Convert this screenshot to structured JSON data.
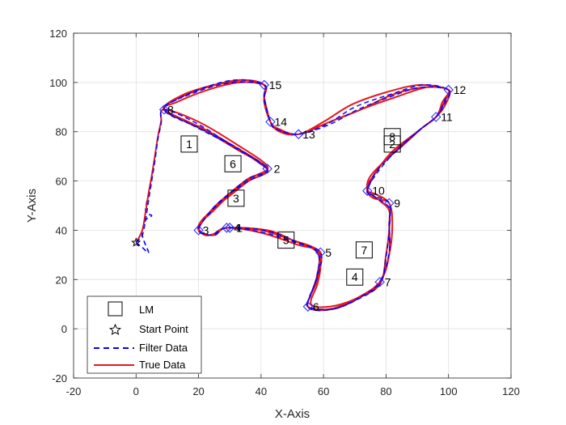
{
  "chart_data": {
    "type": "line",
    "xlabel": "X-Axis",
    "ylabel": "Y-Axis",
    "xlim": [
      -20,
      120
    ],
    "ylim": [
      -20,
      120
    ],
    "xticks": [
      -20,
      0,
      20,
      40,
      60,
      80,
      100,
      120
    ],
    "yticks": [
      -20,
      0,
      20,
      40,
      60,
      80,
      100,
      120
    ],
    "grid": true,
    "legend_position": "bottom-left",
    "legend": [
      {
        "key": "lm",
        "label": "LM"
      },
      {
        "key": "start",
        "label": "Start Point"
      },
      {
        "key": "filter",
        "label": "Filter Data"
      },
      {
        "key": "true",
        "label": "True Data"
      }
    ],
    "colors": {
      "filter": "#0000ff",
      "true": "#e41a1c",
      "waypoint": "#1f1fff",
      "grid": "#dcdcdc",
      "axis": "#262626"
    },
    "start_point": {
      "x": 0,
      "y": 35
    },
    "landmarks": [
      {
        "label": "1",
        "x": 17,
        "y": 75
      },
      {
        "label": "2",
        "x": 82,
        "y": 75
      },
      {
        "label": "3",
        "x": 32,
        "y": 53
      },
      {
        "label": "4",
        "x": 70,
        "y": 21
      },
      {
        "label": "5",
        "x": 48,
        "y": 36
      },
      {
        "label": "6",
        "x": 31,
        "y": 67
      },
      {
        "label": "7",
        "x": 73,
        "y": 32
      },
      {
        "label": "8",
        "x": 82,
        "y": 78
      }
    ],
    "waypoints": [
      {
        "label": "1",
        "x": 30,
        "y": 41,
        "dx": 4,
        "dy": 0
      },
      {
        "label": "2",
        "x": 42,
        "y": 65,
        "dx": 4,
        "dy": 0
      },
      {
        "label": "3",
        "x": 20,
        "y": 40,
        "dx": 1,
        "dy": 0
      },
      {
        "label": "4",
        "x": 29,
        "y": 41,
        "dx": 5,
        "dy": 0
      },
      {
        "label": "5",
        "x": 59,
        "y": 31,
        "dx": 2,
        "dy": 0
      },
      {
        "label": "6",
        "x": 55,
        "y": 9,
        "dx": 2,
        "dy": 0
      },
      {
        "label": "7",
        "x": 78,
        "y": 19,
        "dx": 2,
        "dy": 0
      },
      {
        "label": "8",
        "x": 9,
        "y": 89,
        "dx": 0,
        "dy": 0
      },
      {
        "label": "9",
        "x": 81,
        "y": 51,
        "dx": 2,
        "dy": 0
      },
      {
        "label": "10",
        "x": 74,
        "y": 56,
        "dx": 2,
        "dy": 0
      },
      {
        "label": "11",
        "x": 96,
        "y": 86,
        "dx": 2,
        "dy": 0
      },
      {
        "label": "12",
        "x": 100,
        "y": 97,
        "dx": 2,
        "dy": 0
      },
      {
        "label": "13",
        "x": 52,
        "y": 79,
        "dx": 1,
        "dy": 0
      },
      {
        "label": "14",
        "x": 43,
        "y": 84,
        "dx": 1,
        "dy": 0
      },
      {
        "label": "15",
        "x": 41,
        "y": 99,
        "dx": 2,
        "dy": 0
      }
    ],
    "true_path": [
      [
        0,
        35
      ],
      [
        2,
        40
      ],
      [
        3,
        47
      ],
      [
        4,
        55
      ],
      [
        5,
        62
      ],
      [
        6,
        70
      ],
      [
        7,
        78
      ],
      [
        8,
        84
      ],
      [
        9,
        89
      ],
      [
        20,
        84
      ],
      [
        32,
        75
      ],
      [
        42,
        66
      ],
      [
        38,
        62
      ],
      [
        33,
        58
      ],
      [
        28,
        52
      ],
      [
        24,
        47
      ],
      [
        20,
        42
      ],
      [
        22,
        38
      ],
      [
        26,
        39
      ],
      [
        29,
        41
      ],
      [
        40,
        40
      ],
      [
        50,
        36
      ],
      [
        58,
        32
      ],
      [
        59,
        25
      ],
      [
        58,
        18
      ],
      [
        56,
        10
      ],
      [
        62,
        9
      ],
      [
        70,
        12
      ],
      [
        78,
        18
      ],
      [
        80,
        30
      ],
      [
        81,
        40
      ],
      [
        81,
        48
      ],
      [
        78,
        52
      ],
      [
        74,
        57
      ],
      [
        77,
        64
      ],
      [
        82,
        72
      ],
      [
        90,
        80
      ],
      [
        96,
        86
      ],
      [
        99,
        91
      ],
      [
        100,
        97
      ],
      [
        92,
        98
      ],
      [
        82,
        95
      ],
      [
        72,
        89
      ],
      [
        62,
        84
      ],
      [
        52,
        79
      ],
      [
        46,
        80
      ],
      [
        43,
        84
      ],
      [
        41,
        92
      ],
      [
        41,
        99
      ],
      [
        34,
        101
      ],
      [
        25,
        99
      ],
      [
        15,
        95
      ],
      [
        9,
        89
      ],
      [
        18,
        83
      ],
      [
        30,
        75
      ],
      [
        42,
        65
      ],
      [
        36,
        60
      ],
      [
        30,
        54
      ],
      [
        26,
        50
      ],
      [
        21,
        44
      ],
      [
        20,
        40
      ],
      [
        24,
        38
      ],
      [
        29,
        41
      ],
      [
        42,
        40
      ],
      [
        50,
        36
      ],
      [
        58,
        31
      ],
      [
        58,
        22
      ],
      [
        56,
        14
      ],
      [
        55,
        9
      ],
      [
        62,
        8
      ],
      [
        70,
        12
      ],
      [
        78,
        19
      ],
      [
        81,
        30
      ],
      [
        81,
        42
      ],
      [
        81,
        51
      ],
      [
        76,
        53
      ],
      [
        74,
        56
      ],
      [
        75,
        62
      ],
      [
        82,
        71
      ],
      [
        90,
        80
      ],
      [
        96,
        86
      ],
      [
        98,
        92
      ],
      [
        100,
        97
      ],
      [
        93,
        98
      ],
      [
        83,
        94
      ],
      [
        74,
        90
      ],
      [
        62,
        84
      ],
      [
        52,
        79
      ],
      [
        45,
        81
      ],
      [
        43,
        84
      ],
      [
        41,
        94
      ],
      [
        41,
        99
      ],
      [
        33,
        100
      ],
      [
        23,
        97
      ],
      [
        13,
        92
      ],
      [
        9,
        89
      ],
      [
        20,
        82
      ],
      [
        32,
        73
      ],
      [
        42,
        65
      ],
      [
        36,
        61
      ],
      [
        29,
        54
      ],
      [
        24,
        48
      ],
      [
        20,
        40
      ],
      [
        25,
        38
      ],
      [
        29,
        41
      ],
      [
        40,
        39
      ],
      [
        52,
        34
      ],
      [
        59,
        31
      ],
      [
        58,
        20
      ],
      [
        55,
        9
      ],
      [
        63,
        8
      ],
      [
        72,
        13
      ],
      [
        78,
        19
      ],
      [
        81,
        30
      ],
      [
        82,
        42
      ],
      [
        81,
        51
      ],
      [
        76,
        55
      ],
      [
        74,
        56
      ],
      [
        78,
        66
      ],
      [
        85,
        74
      ],
      [
        92,
        82
      ],
      [
        96,
        86
      ],
      [
        99,
        93
      ],
      [
        100,
        97
      ],
      [
        91,
        99
      ],
      [
        80,
        96
      ],
      [
        69,
        91
      ],
      [
        60,
        84
      ],
      [
        52,
        79
      ],
      [
        46,
        81
      ],
      [
        43,
        84
      ],
      [
        41,
        93
      ],
      [
        41,
        99
      ],
      [
        30,
        100
      ],
      [
        18,
        96
      ],
      [
        9,
        89
      ],
      [
        22,
        81
      ],
      [
        34,
        72
      ],
      [
        42,
        65
      ]
    ],
    "filter_path": [
      [
        0,
        35
      ],
      [
        2,
        38
      ],
      [
        3,
        44
      ],
      [
        4,
        52
      ],
      [
        5,
        60
      ],
      [
        6,
        68
      ],
      [
        7,
        77
      ],
      [
        8,
        83
      ],
      [
        9,
        89
      ],
      [
        20,
        83
      ],
      [
        31,
        74
      ],
      [
        42,
        65
      ],
      [
        36,
        61
      ],
      [
        30,
        55
      ],
      [
        25,
        49
      ],
      [
        21,
        43
      ],
      [
        20,
        40
      ],
      [
        24,
        38
      ],
      [
        29,
        41
      ],
      [
        41,
        40
      ],
      [
        50,
        36
      ],
      [
        58,
        31
      ],
      [
        58,
        22
      ],
      [
        56,
        14
      ],
      [
        55,
        9
      ],
      [
        63,
        8
      ],
      [
        71,
        12
      ],
      [
        78,
        18
      ],
      [
        80,
        29
      ],
      [
        81,
        40
      ],
      [
        81,
        49
      ],
      [
        77,
        53
      ],
      [
        74,
        56
      ],
      [
        77,
        63
      ],
      [
        83,
        72
      ],
      [
        90,
        80
      ],
      [
        96,
        86
      ],
      [
        99,
        92
      ],
      [
        100,
        97
      ],
      [
        91,
        98
      ],
      [
        81,
        94
      ],
      [
        71,
        89
      ],
      [
        62,
        83
      ],
      [
        52,
        79
      ],
      [
        45,
        81
      ],
      [
        43,
        84
      ],
      [
        41,
        93
      ],
      [
        41,
        99
      ],
      [
        32,
        101
      ],
      [
        22,
        98
      ],
      [
        13,
        93
      ],
      [
        9,
        89
      ],
      [
        19,
        82
      ],
      [
        31,
        74
      ],
      [
        42,
        65
      ],
      [
        36,
        60
      ],
      [
        29,
        54
      ],
      [
        24,
        48
      ],
      [
        20,
        40
      ],
      [
        25,
        38
      ],
      [
        29,
        41
      ],
      [
        41,
        39
      ],
      [
        51,
        35
      ],
      [
        59,
        31
      ],
      [
        58,
        21
      ],
      [
        55,
        9
      ],
      [
        63,
        8
      ],
      [
        72,
        13
      ],
      [
        78,
        19
      ],
      [
        81,
        31
      ],
      [
        81,
        43
      ],
      [
        81,
        51
      ],
      [
        76,
        54
      ],
      [
        74,
        56
      ],
      [
        77,
        64
      ],
      [
        84,
        73
      ],
      [
        91,
        81
      ],
      [
        96,
        86
      ],
      [
        99,
        93
      ],
      [
        100,
        97
      ],
      [
        92,
        99
      ],
      [
        81,
        95
      ],
      [
        70,
        90
      ],
      [
        61,
        83
      ],
      [
        52,
        79
      ],
      [
        45,
        81
      ],
      [
        43,
        84
      ],
      [
        41,
        94
      ],
      [
        41,
        99
      ],
      [
        31,
        100
      ],
      [
        19,
        96
      ],
      [
        9,
        89
      ],
      [
        21,
        81
      ],
      [
        33,
        73
      ],
      [
        42,
        65
      ]
    ],
    "filter_start_tail": [
      [
        0,
        35
      ],
      [
        2,
        33
      ],
      [
        4,
        31
      ],
      [
        2,
        38
      ],
      [
        3,
        44
      ],
      [
        5,
        46
      ],
      [
        3,
        48
      ],
      [
        5,
        60
      ]
    ]
  }
}
